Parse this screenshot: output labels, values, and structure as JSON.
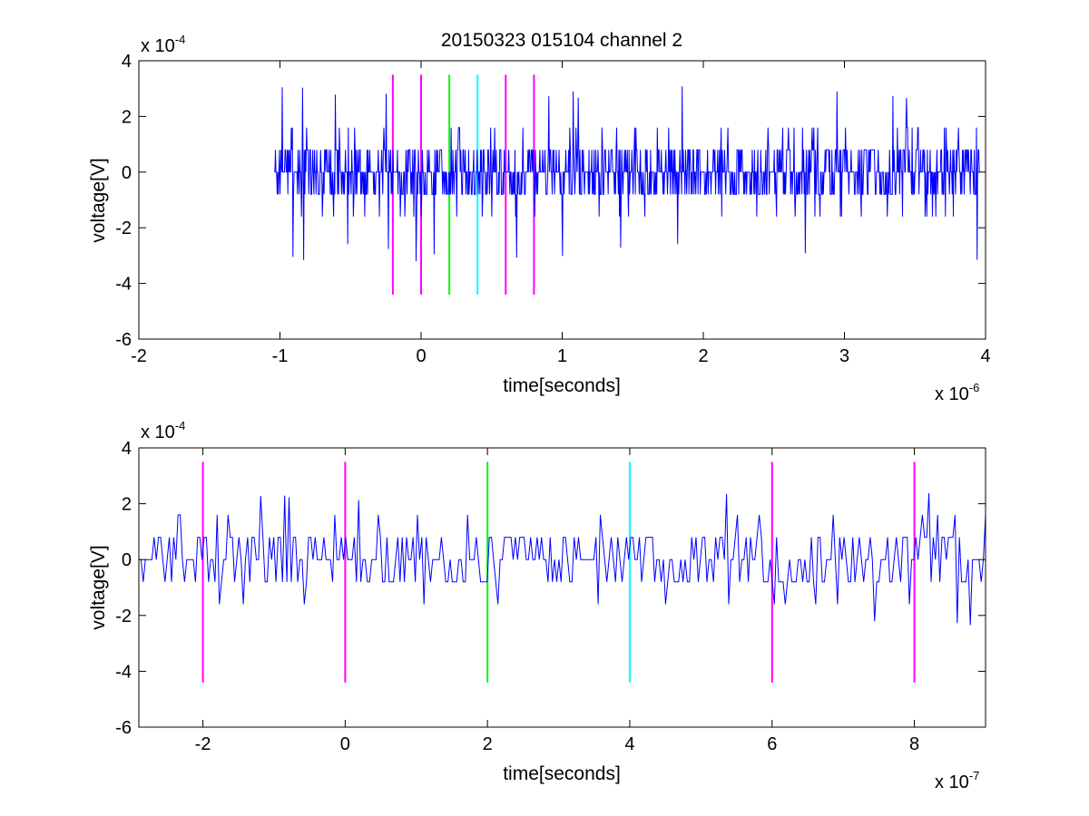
{
  "figure": {
    "title": "20150323 015104 channel 2"
  },
  "chart_data": [
    {
      "type": "line",
      "xlabel": "time[seconds]",
      "ylabel": "voltage[V]",
      "x_multiplier": "x 10",
      "x_exponent": "-6",
      "y_multiplier": "x 10",
      "y_exponent": "-4",
      "xlim": [
        -2,
        4
      ],
      "ylim": [
        -6,
        4
      ],
      "xticks": [
        "-2",
        "-1",
        "0",
        "1",
        "2",
        "3",
        "4"
      ],
      "yticks": [
        "-6",
        "-4",
        "-2",
        "0",
        "2",
        "4"
      ],
      "series": [
        {
          "color": "#0000ff",
          "x_range": [
            -1.04,
            3.96
          ],
          "amplitude": 3.2,
          "seed": 7
        }
      ],
      "markers": [
        {
          "x": -0.2,
          "color": "#ff00ff",
          "ymin": -4.4,
          "ymax": 3.5
        },
        {
          "x": 0.0,
          "color": "#ff00ff",
          "ymin": -4.4,
          "ymax": 3.5
        },
        {
          "x": 0.2,
          "color": "#00ff00",
          "ymin": -4.4,
          "ymax": 3.5
        },
        {
          "x": 0.4,
          "color": "#00ffff",
          "ymin": -4.4,
          "ymax": 3.5
        },
        {
          "x": 0.6,
          "color": "#ff00ff",
          "ymin": -4.4,
          "ymax": 3.5
        },
        {
          "x": 0.8,
          "color": "#ff00ff",
          "ymin": -4.4,
          "ymax": 3.5
        }
      ]
    },
    {
      "type": "line",
      "xlabel": "time[seconds]",
      "ylabel": "voltage[V]",
      "x_multiplier": "x 10",
      "x_exponent": "-7",
      "y_multiplier": "x 10",
      "y_exponent": "-4",
      "xlim": [
        -2.9,
        9
      ],
      "ylim": [
        -6,
        4
      ],
      "xticks": [
        "-2",
        "0",
        "2",
        "4",
        "6",
        "8"
      ],
      "xtick_values": [
        -2,
        0,
        2,
        4,
        6,
        8
      ],
      "yticks": [
        "-6",
        "-4",
        "-2",
        "0",
        "2",
        "4"
      ],
      "series": [
        {
          "color": "#0000ff",
          "x_range": [
            -2.9,
            9.0
          ],
          "amplitude": 2.4,
          "seed": 13
        }
      ],
      "markers": [
        {
          "x": -2,
          "color": "#ff00ff",
          "ymin": -4.4,
          "ymax": 3.5
        },
        {
          "x": 0,
          "color": "#ff00ff",
          "ymin": -4.4,
          "ymax": 3.5
        },
        {
          "x": 2,
          "color": "#00ff00",
          "ymin": -4.4,
          "ymax": 3.5
        },
        {
          "x": 4,
          "color": "#00ffff",
          "ymin": -4.4,
          "ymax": 3.5
        },
        {
          "x": 6,
          "color": "#ff00ff",
          "ymin": -4.4,
          "ymax": 3.5
        },
        {
          "x": 8,
          "color": "#ff00ff",
          "ymin": -4.4,
          "ymax": 3.5
        }
      ]
    }
  ]
}
